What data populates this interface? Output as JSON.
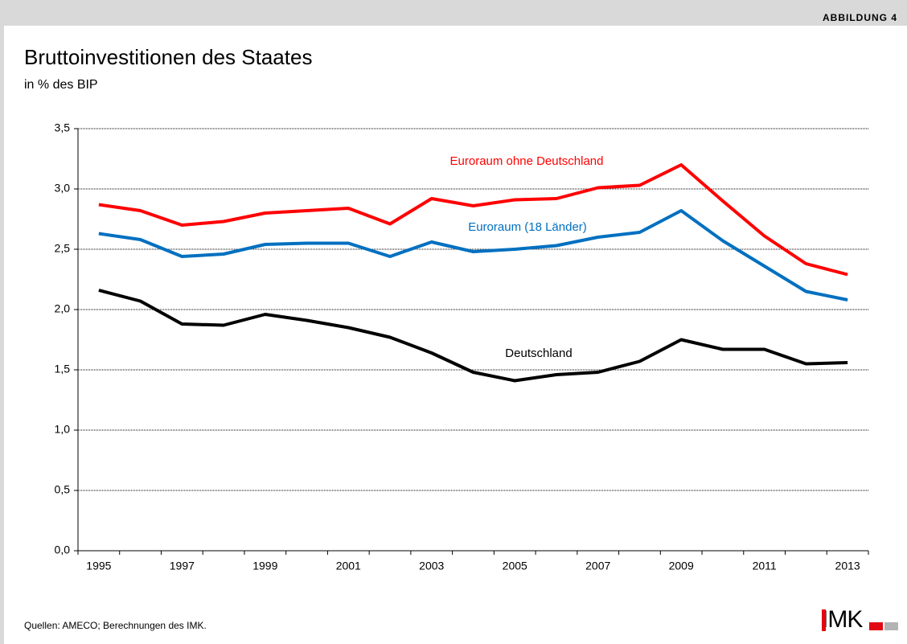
{
  "header": "ABBILDUNG 4",
  "chart_data": {
    "type": "line",
    "title": "Bruttoinvestitionen des Staates",
    "subtitle": "in %  des BIP",
    "categories": [
      "1995",
      null,
      "1997",
      null,
      "1999",
      null,
      "2001",
      null,
      "2003",
      null,
      "2005",
      null,
      "2007",
      null,
      "2009",
      null,
      "2011",
      null,
      "2013"
    ],
    "series": [
      {
        "name": "Euroraum ohne Deutschland",
        "color": "#ff0000",
        "values": [
          2.87,
          2.82,
          2.7,
          2.73,
          2.8,
          2.82,
          2.84,
          2.71,
          2.92,
          2.86,
          2.91,
          2.92,
          3.01,
          3.03,
          3.2,
          2.9,
          2.61,
          2.38,
          2.29
        ]
      },
      {
        "name": "Euroraum (18 Länder)",
        "color": "#0070c0",
        "values": [
          2.63,
          2.58,
          2.44,
          2.46,
          2.54,
          2.55,
          2.55,
          2.44,
          2.56,
          2.48,
          2.5,
          2.53,
          2.6,
          2.64,
          2.82,
          2.57,
          2.36,
          2.15,
          2.08
        ]
      },
      {
        "name": "Deutschland",
        "color": "#000000",
        "values": [
          2.16,
          2.07,
          1.88,
          1.87,
          1.96,
          1.91,
          1.85,
          1.77,
          1.64,
          1.48,
          1.41,
          1.46,
          1.48,
          1.57,
          1.75,
          1.67,
          1.67,
          1.55,
          1.56
        ]
      }
    ],
    "ylim": [
      0,
      3.5
    ],
    "yticks": [
      {
        "value": 0,
        "label": "0,0"
      },
      {
        "value": 0.5,
        "label": "0,5"
      },
      {
        "value": 1,
        "label": "1,0"
      },
      {
        "value": 1.5,
        "label": "1,5"
      },
      {
        "value": 2,
        "label": "2,0"
      },
      {
        "value": 2.5,
        "label": "2,5"
      },
      {
        "value": 3,
        "label": "3,0"
      },
      {
        "value": 3.5,
        "label": "3,5"
      }
    ],
    "grid": true
  },
  "source": "Quellen: AMECO; Berechnungen des IMK.",
  "logo": "IMK"
}
